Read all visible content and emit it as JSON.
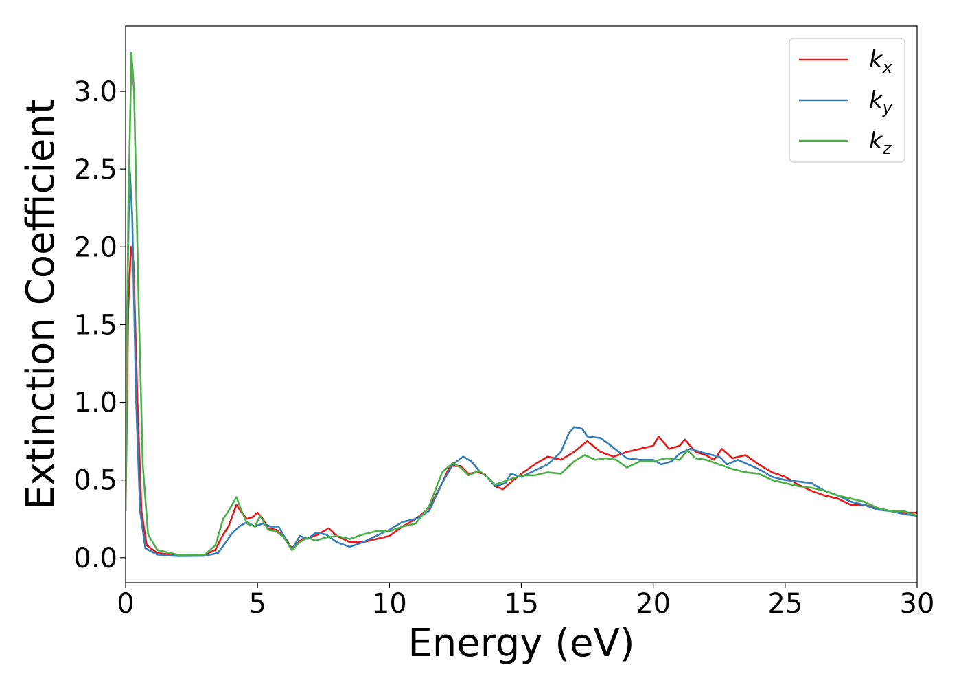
{
  "chart_data": {
    "type": "line",
    "xlabel": "Energy (eV)",
    "ylabel": "Extinction Coefficient",
    "xlim": [
      0,
      30
    ],
    "ylim": [
      -0.16,
      3.42
    ],
    "xticks": [
      "0",
      "5",
      "10",
      "15",
      "20",
      "25",
      "30"
    ],
    "yticks": [
      "0.0",
      "0.5",
      "1.0",
      "1.5",
      "2.0",
      "2.5",
      "3.0"
    ],
    "grid": false,
    "legend": "top-right",
    "series": [
      {
        "name": "k",
        "subscript": "x",
        "color": "#e41a1c",
        "points": [
          [
            0,
            0.3
          ],
          [
            0.1,
            1.6
          ],
          [
            0.2,
            2.0
          ],
          [
            0.3,
            1.9
          ],
          [
            0.45,
            1.0
          ],
          [
            0.6,
            0.3
          ],
          [
            0.8,
            0.08
          ],
          [
            1.2,
            0.03
          ],
          [
            2,
            0.015
          ],
          [
            3,
            0.02
          ],
          [
            3.4,
            0.05
          ],
          [
            3.7,
            0.15
          ],
          [
            3.9,
            0.2
          ],
          [
            4.2,
            0.34
          ],
          [
            4.4,
            0.29
          ],
          [
            4.6,
            0.25
          ],
          [
            4.8,
            0.26
          ],
          [
            5.0,
            0.29
          ],
          [
            5.2,
            0.25
          ],
          [
            5.4,
            0.19
          ],
          [
            5.7,
            0.18
          ],
          [
            6.0,
            0.14
          ],
          [
            6.3,
            0.06
          ],
          [
            6.5,
            0.09
          ],
          [
            6.7,
            0.12
          ],
          [
            7.0,
            0.13
          ],
          [
            7.3,
            0.15
          ],
          [
            7.7,
            0.19
          ],
          [
            8.0,
            0.14
          ],
          [
            8.5,
            0.1
          ],
          [
            9.0,
            0.1
          ],
          [
            9.5,
            0.12
          ],
          [
            10.0,
            0.14
          ],
          [
            10.5,
            0.2
          ],
          [
            11.0,
            0.25
          ],
          [
            11.5,
            0.32
          ],
          [
            12.0,
            0.48
          ],
          [
            12.3,
            0.59
          ],
          [
            12.7,
            0.59
          ],
          [
            13.0,
            0.54
          ],
          [
            13.3,
            0.55
          ],
          [
            13.6,
            0.54
          ],
          [
            14.0,
            0.46
          ],
          [
            14.3,
            0.44
          ],
          [
            14.7,
            0.5
          ],
          [
            15.0,
            0.54
          ],
          [
            15.5,
            0.6
          ],
          [
            16.0,
            0.65
          ],
          [
            16.5,
            0.63
          ],
          [
            17.0,
            0.68
          ],
          [
            17.5,
            0.75
          ],
          [
            18.0,
            0.68
          ],
          [
            18.5,
            0.65
          ],
          [
            19.0,
            0.68
          ],
          [
            19.5,
            0.7
          ],
          [
            20.0,
            0.72
          ],
          [
            20.2,
            0.78
          ],
          [
            20.6,
            0.7
          ],
          [
            21.0,
            0.72
          ],
          [
            21.2,
            0.76
          ],
          [
            21.6,
            0.68
          ],
          [
            22.0,
            0.66
          ],
          [
            22.3,
            0.63
          ],
          [
            22.6,
            0.7
          ],
          [
            23.0,
            0.64
          ],
          [
            23.5,
            0.66
          ],
          [
            24.0,
            0.6
          ],
          [
            24.5,
            0.55
          ],
          [
            25.0,
            0.52
          ],
          [
            25.5,
            0.47
          ],
          [
            26.0,
            0.43
          ],
          [
            26.5,
            0.4
          ],
          [
            27.0,
            0.38
          ],
          [
            27.5,
            0.34
          ],
          [
            28.0,
            0.34
          ],
          [
            28.5,
            0.32
          ],
          [
            29.0,
            0.3
          ],
          [
            29.5,
            0.29
          ],
          [
            30.0,
            0.29
          ]
        ]
      },
      {
        "name": "k",
        "subscript": "y",
        "color": "#377eb8",
        "points": [
          [
            0,
            0.3
          ],
          [
            0.05,
            1.5
          ],
          [
            0.15,
            2.52
          ],
          [
            0.25,
            2.2
          ],
          [
            0.4,
            1.0
          ],
          [
            0.55,
            0.3
          ],
          [
            0.75,
            0.06
          ],
          [
            1.2,
            0.02
          ],
          [
            2,
            0.01
          ],
          [
            3,
            0.012
          ],
          [
            3.5,
            0.03
          ],
          [
            3.8,
            0.1
          ],
          [
            4.0,
            0.15
          ],
          [
            4.3,
            0.2
          ],
          [
            4.6,
            0.23
          ],
          [
            4.9,
            0.2
          ],
          [
            5.2,
            0.22
          ],
          [
            5.5,
            0.2
          ],
          [
            5.8,
            0.2
          ],
          [
            6.0,
            0.14
          ],
          [
            6.3,
            0.05
          ],
          [
            6.6,
            0.14
          ],
          [
            6.9,
            0.12
          ],
          [
            7.2,
            0.16
          ],
          [
            7.6,
            0.15
          ],
          [
            8.0,
            0.1
          ],
          [
            8.5,
            0.07
          ],
          [
            9.0,
            0.1
          ],
          [
            9.5,
            0.14
          ],
          [
            10.0,
            0.18
          ],
          [
            10.5,
            0.23
          ],
          [
            11.0,
            0.25
          ],
          [
            11.5,
            0.3
          ],
          [
            12.0,
            0.48
          ],
          [
            12.4,
            0.6
          ],
          [
            12.8,
            0.65
          ],
          [
            13.1,
            0.62
          ],
          [
            13.4,
            0.56
          ],
          [
            13.7,
            0.52
          ],
          [
            14.0,
            0.46
          ],
          [
            14.4,
            0.48
          ],
          [
            14.6,
            0.54
          ],
          [
            15.0,
            0.52
          ],
          [
            15.5,
            0.56
          ],
          [
            16.0,
            0.6
          ],
          [
            16.5,
            0.68
          ],
          [
            16.8,
            0.8
          ],
          [
            17.0,
            0.84
          ],
          [
            17.3,
            0.83
          ],
          [
            17.5,
            0.78
          ],
          [
            18.0,
            0.77
          ],
          [
            18.4,
            0.72
          ],
          [
            19.0,
            0.64
          ],
          [
            19.5,
            0.63
          ],
          [
            20.0,
            0.63
          ],
          [
            20.3,
            0.6
          ],
          [
            20.7,
            0.62
          ],
          [
            21.0,
            0.67
          ],
          [
            21.4,
            0.7
          ],
          [
            22.0,
            0.67
          ],
          [
            22.5,
            0.65
          ],
          [
            22.8,
            0.6
          ],
          [
            23.2,
            0.63
          ],
          [
            23.6,
            0.6
          ],
          [
            24.0,
            0.57
          ],
          [
            24.5,
            0.52
          ],
          [
            25.0,
            0.5
          ],
          [
            25.5,
            0.49
          ],
          [
            26.0,
            0.48
          ],
          [
            26.5,
            0.43
          ],
          [
            27.0,
            0.4
          ],
          [
            27.5,
            0.36
          ],
          [
            28.0,
            0.34
          ],
          [
            28.5,
            0.31
          ],
          [
            29.0,
            0.3
          ],
          [
            29.5,
            0.28
          ],
          [
            30.0,
            0.27
          ]
        ]
      },
      {
        "name": "k",
        "subscript": "z",
        "color": "#4daf4a",
        "points": [
          [
            0,
            0.3
          ],
          [
            0.1,
            2.2
          ],
          [
            0.22,
            3.25
          ],
          [
            0.32,
            3.0
          ],
          [
            0.5,
            1.6
          ],
          [
            0.65,
            0.6
          ],
          [
            0.85,
            0.15
          ],
          [
            1.2,
            0.05
          ],
          [
            2,
            0.018
          ],
          [
            3,
            0.02
          ],
          [
            3.4,
            0.08
          ],
          [
            3.7,
            0.25
          ],
          [
            3.9,
            0.3
          ],
          [
            4.2,
            0.39
          ],
          [
            4.4,
            0.3
          ],
          [
            4.6,
            0.22
          ],
          [
            4.9,
            0.2
          ],
          [
            5.1,
            0.27
          ],
          [
            5.4,
            0.18
          ],
          [
            5.7,
            0.17
          ],
          [
            6.0,
            0.13
          ],
          [
            6.3,
            0.05
          ],
          [
            6.6,
            0.1
          ],
          [
            6.9,
            0.13
          ],
          [
            7.2,
            0.11
          ],
          [
            7.6,
            0.13
          ],
          [
            8.0,
            0.14
          ],
          [
            8.5,
            0.12
          ],
          [
            9.0,
            0.15
          ],
          [
            9.5,
            0.17
          ],
          [
            10.0,
            0.17
          ],
          [
            10.5,
            0.2
          ],
          [
            11.0,
            0.22
          ],
          [
            11.5,
            0.33
          ],
          [
            12.0,
            0.55
          ],
          [
            12.4,
            0.61
          ],
          [
            12.7,
            0.58
          ],
          [
            13.0,
            0.53
          ],
          [
            13.4,
            0.56
          ],
          [
            13.7,
            0.52
          ],
          [
            14.0,
            0.47
          ],
          [
            14.5,
            0.5
          ],
          [
            15.0,
            0.53
          ],
          [
            15.5,
            0.53
          ],
          [
            16.0,
            0.55
          ],
          [
            16.5,
            0.54
          ],
          [
            17.0,
            0.62
          ],
          [
            17.4,
            0.66
          ],
          [
            17.8,
            0.63
          ],
          [
            18.2,
            0.64
          ],
          [
            18.6,
            0.63
          ],
          [
            19.0,
            0.58
          ],
          [
            19.5,
            0.62
          ],
          [
            20.0,
            0.62
          ],
          [
            20.5,
            0.64
          ],
          [
            21.0,
            0.63
          ],
          [
            21.3,
            0.69
          ],
          [
            21.6,
            0.64
          ],
          [
            22.0,
            0.63
          ],
          [
            22.5,
            0.6
          ],
          [
            23.0,
            0.57
          ],
          [
            23.5,
            0.55
          ],
          [
            24.0,
            0.54
          ],
          [
            24.5,
            0.5
          ],
          [
            25.0,
            0.48
          ],
          [
            25.5,
            0.46
          ],
          [
            26.0,
            0.45
          ],
          [
            26.5,
            0.43
          ],
          [
            27.0,
            0.4
          ],
          [
            27.5,
            0.38
          ],
          [
            28.0,
            0.36
          ],
          [
            28.5,
            0.32
          ],
          [
            29.0,
            0.3
          ],
          [
            29.5,
            0.3
          ],
          [
            30.0,
            0.27
          ]
        ]
      }
    ]
  }
}
